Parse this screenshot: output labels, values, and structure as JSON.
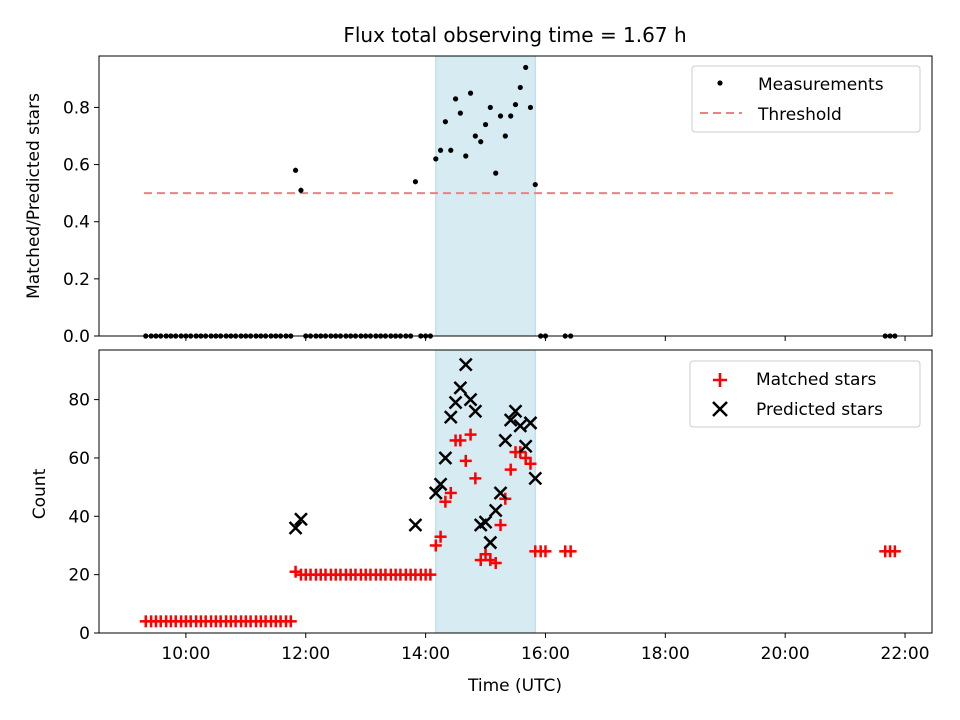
{
  "title": "Flux total observing time = 1.67 h",
  "colors": {
    "measurement": "#000000",
    "threshold": "#f08080",
    "matched": "#ff0000",
    "predicted": "#000000",
    "highlight": "#add8e6"
  },
  "chart_data": [
    {
      "type": "scatter",
      "panel": "top",
      "xlabel": "",
      "ylabel": "Matched/Predicted stars",
      "x_unit": "hours UTC",
      "xlim": [
        8.55,
        22.45
      ],
      "ylim": [
        0.0,
        0.98
      ],
      "yticks": [
        0.0,
        0.2,
        0.4,
        0.6,
        0.8
      ],
      "ytick_labels": [
        "0.0",
        "0.2",
        "0.4",
        "0.6",
        "0.8"
      ],
      "highlight_span": [
        14.17,
        15.83
      ],
      "legend": [
        "Measurements",
        "Threshold"
      ],
      "legend_position": "upper right",
      "threshold": {
        "name": "Threshold",
        "y": 0.5,
        "x_range": [
          9.3,
          21.8
        ]
      },
      "series": [
        {
          "name": "Measurements",
          "points": [
            [
              9.33,
              0
            ],
            [
              9.42,
              0
            ],
            [
              9.5,
              0
            ],
            [
              9.58,
              0
            ],
            [
              9.67,
              0
            ],
            [
              9.75,
              0
            ],
            [
              9.83,
              0
            ],
            [
              9.92,
              0
            ],
            [
              10.0,
              0
            ],
            [
              10.08,
              0
            ],
            [
              10.17,
              0
            ],
            [
              10.25,
              0
            ],
            [
              10.33,
              0
            ],
            [
              10.42,
              0
            ],
            [
              10.5,
              0
            ],
            [
              10.58,
              0
            ],
            [
              10.67,
              0
            ],
            [
              10.75,
              0
            ],
            [
              10.83,
              0
            ],
            [
              10.92,
              0
            ],
            [
              11.0,
              0
            ],
            [
              11.08,
              0
            ],
            [
              11.17,
              0
            ],
            [
              11.25,
              0
            ],
            [
              11.33,
              0
            ],
            [
              11.42,
              0
            ],
            [
              11.5,
              0
            ],
            [
              11.58,
              0
            ],
            [
              11.67,
              0
            ],
            [
              11.75,
              0
            ],
            [
              11.83,
              0.58
            ],
            [
              11.92,
              0.51
            ],
            [
              12.0,
              0
            ],
            [
              12.08,
              0
            ],
            [
              12.17,
              0
            ],
            [
              12.25,
              0
            ],
            [
              12.33,
              0
            ],
            [
              12.42,
              0
            ],
            [
              12.5,
              0
            ],
            [
              12.58,
              0
            ],
            [
              12.67,
              0
            ],
            [
              12.75,
              0
            ],
            [
              12.83,
              0
            ],
            [
              12.92,
              0
            ],
            [
              13.0,
              0
            ],
            [
              13.08,
              0
            ],
            [
              13.17,
              0
            ],
            [
              13.25,
              0
            ],
            [
              13.33,
              0
            ],
            [
              13.42,
              0
            ],
            [
              13.5,
              0
            ],
            [
              13.58,
              0
            ],
            [
              13.67,
              0
            ],
            [
              13.75,
              0
            ],
            [
              13.83,
              0.54
            ],
            [
              13.92,
              0
            ],
            [
              14.0,
              0
            ],
            [
              14.08,
              0
            ],
            [
              14.17,
              0.62
            ],
            [
              14.25,
              0.65
            ],
            [
              14.33,
              0.75
            ],
            [
              14.42,
              0.65
            ],
            [
              14.5,
              0.83
            ],
            [
              14.58,
              0.78
            ],
            [
              14.67,
              0.63
            ],
            [
              14.75,
              0.85
            ],
            [
              14.83,
              0.7
            ],
            [
              14.92,
              0.68
            ],
            [
              15.0,
              0.74
            ],
            [
              15.08,
              0.8
            ],
            [
              15.17,
              0.57
            ],
            [
              15.25,
              0.77
            ],
            [
              15.33,
              0.7
            ],
            [
              15.42,
              0.77
            ],
            [
              15.5,
              0.81
            ],
            [
              15.58,
              0.87
            ],
            [
              15.67,
              0.94
            ],
            [
              15.75,
              0.8
            ],
            [
              15.83,
              0.53
            ],
            [
              15.92,
              0
            ],
            [
              16.0,
              0
            ],
            [
              16.33,
              0
            ],
            [
              16.42,
              0
            ],
            [
              21.67,
              0
            ],
            [
              21.75,
              0
            ],
            [
              21.83,
              0
            ]
          ]
        }
      ]
    },
    {
      "type": "scatter",
      "panel": "bottom",
      "xlabel": "Time (UTC)",
      "ylabel": "Count",
      "x_unit": "hours UTC",
      "xlim": [
        8.55,
        22.45
      ],
      "ylim": [
        0,
        97
      ],
      "yticks": [
        0,
        20,
        40,
        60,
        80
      ],
      "ytick_labels": [
        "0",
        "20",
        "40",
        "60",
        "80"
      ],
      "xticks": [
        10,
        12,
        14,
        16,
        18,
        20,
        22
      ],
      "xtick_labels": [
        "10:00",
        "12:00",
        "14:00",
        "16:00",
        "18:00",
        "20:00",
        "22:00"
      ],
      "highlight_span": [
        14.17,
        15.83
      ],
      "legend": [
        "Matched stars",
        "Predicted stars"
      ],
      "legend_position": "upper right",
      "series": [
        {
          "name": "Matched stars",
          "marker": "plus",
          "points": [
            [
              9.33,
              4
            ],
            [
              9.42,
              4
            ],
            [
              9.5,
              4
            ],
            [
              9.58,
              4
            ],
            [
              9.67,
              4
            ],
            [
              9.75,
              4
            ],
            [
              9.83,
              4
            ],
            [
              9.92,
              4
            ],
            [
              10.0,
              4
            ],
            [
              10.08,
              4
            ],
            [
              10.17,
              4
            ],
            [
              10.25,
              4
            ],
            [
              10.33,
              4
            ],
            [
              10.42,
              4
            ],
            [
              10.5,
              4
            ],
            [
              10.58,
              4
            ],
            [
              10.67,
              4
            ],
            [
              10.75,
              4
            ],
            [
              10.83,
              4
            ],
            [
              10.92,
              4
            ],
            [
              11.0,
              4
            ],
            [
              11.08,
              4
            ],
            [
              11.17,
              4
            ],
            [
              11.25,
              4
            ],
            [
              11.33,
              4
            ],
            [
              11.42,
              4
            ],
            [
              11.5,
              4
            ],
            [
              11.58,
              4
            ],
            [
              11.67,
              4
            ],
            [
              11.75,
              4
            ],
            [
              11.83,
              21
            ],
            [
              11.92,
              20
            ],
            [
              12.0,
              20
            ],
            [
              12.08,
              20
            ],
            [
              12.17,
              20
            ],
            [
              12.25,
              20
            ],
            [
              12.33,
              20
            ],
            [
              12.42,
              20
            ],
            [
              12.5,
              20
            ],
            [
              12.58,
              20
            ],
            [
              12.67,
              20
            ],
            [
              12.75,
              20
            ],
            [
              12.83,
              20
            ],
            [
              12.92,
              20
            ],
            [
              13.0,
              20
            ],
            [
              13.08,
              20
            ],
            [
              13.17,
              20
            ],
            [
              13.25,
              20
            ],
            [
              13.33,
              20
            ],
            [
              13.42,
              20
            ],
            [
              13.5,
              20
            ],
            [
              13.58,
              20
            ],
            [
              13.67,
              20
            ],
            [
              13.75,
              20
            ],
            [
              13.83,
              20
            ],
            [
              13.92,
              20
            ],
            [
              14.0,
              20
            ],
            [
              14.08,
              20
            ],
            [
              14.17,
              30
            ],
            [
              14.25,
              33
            ],
            [
              14.33,
              45
            ],
            [
              14.42,
              48
            ],
            [
              14.5,
              66
            ],
            [
              14.58,
              66
            ],
            [
              14.67,
              59
            ],
            [
              14.75,
              68
            ],
            [
              14.83,
              53
            ],
            [
              14.92,
              25
            ],
            [
              15.0,
              27
            ],
            [
              15.08,
              25
            ],
            [
              15.17,
              24
            ],
            [
              15.25,
              37
            ],
            [
              15.33,
              46
            ],
            [
              15.42,
              56
            ],
            [
              15.5,
              62
            ],
            [
              15.58,
              62
            ],
            [
              15.67,
              60
            ],
            [
              15.75,
              58
            ],
            [
              15.83,
              28
            ],
            [
              15.92,
              28
            ],
            [
              16.0,
              28
            ],
            [
              16.33,
              28
            ],
            [
              16.42,
              28
            ],
            [
              21.67,
              28
            ],
            [
              21.75,
              28
            ],
            [
              21.83,
              28
            ]
          ]
        },
        {
          "name": "Predicted stars",
          "marker": "x",
          "points": [
            [
              11.83,
              36
            ],
            [
              11.92,
              39
            ],
            [
              13.83,
              37
            ],
            [
              14.17,
              48
            ],
            [
              14.25,
              51
            ],
            [
              14.33,
              60
            ],
            [
              14.42,
              74
            ],
            [
              14.5,
              79
            ],
            [
              14.58,
              84
            ],
            [
              14.67,
              92
            ],
            [
              14.75,
              80
            ],
            [
              14.83,
              76
            ],
            [
              14.92,
              37
            ],
            [
              15.0,
              38
            ],
            [
              15.08,
              31
            ],
            [
              15.17,
              42
            ],
            [
              15.25,
              48
            ],
            [
              15.33,
              66
            ],
            [
              15.42,
              73
            ],
            [
              15.5,
              76
            ],
            [
              15.58,
              71
            ],
            [
              15.67,
              64
            ],
            [
              15.75,
              72
            ],
            [
              15.83,
              53
            ]
          ]
        }
      ]
    }
  ]
}
